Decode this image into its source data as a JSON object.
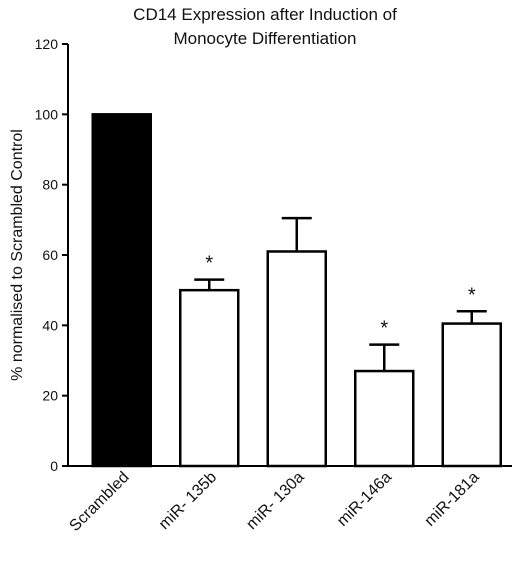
{
  "chart_data": {
    "type": "bar",
    "title_lines": [
      "CD14 Expression after Induction of",
      "Monocyte Differentiation"
    ],
    "ylabel": "% normalised to Scrambled Control",
    "xlabel": "",
    "ylim": [
      0,
      120
    ],
    "yticks": [
      "0",
      "20",
      "40",
      "60",
      "80",
      "100",
      "120"
    ],
    "grid": false,
    "categories": [
      "Scrambled",
      "miR- 135b",
      "miR- 130a",
      "miR-146a",
      "miR-181a"
    ],
    "values": [
      100,
      50,
      61,
      27,
      40.5
    ],
    "error_upper": [
      0,
      3,
      9.5,
      7.5,
      3.5
    ],
    "significance": [
      "",
      "*",
      "",
      "*",
      "*"
    ],
    "fill_colors": [
      "#000000",
      "#ffffff",
      "#ffffff",
      "#ffffff",
      "#ffffff"
    ]
  }
}
